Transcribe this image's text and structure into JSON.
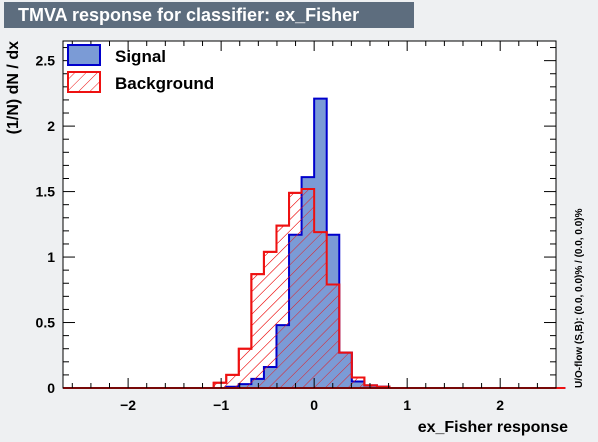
{
  "title": "TMVA response for classifier: ex_Fisher",
  "side_note": "U/O-flow (S,B): (0.0, 0.0)% / (0.0, 0.0)%",
  "colors": {
    "signal_fill": "#7b9bd6",
    "signal_line": "#0000cc",
    "background_line": "#ee1111",
    "plot_bg": "#ffffff",
    "page_bg": "#eef0f2",
    "title_bg": "#5d6d7e"
  },
  "chart_data": {
    "type": "histogram",
    "xlabel": "ex_Fisher response",
    "ylabel": "(1/N) dN / dx",
    "xlim": [
      -2.7,
      2.6
    ],
    "ylim": [
      0,
      2.65
    ],
    "xticks": [
      -2,
      -1,
      0,
      1,
      2
    ],
    "xtick_labels": [
      "−2",
      "−1",
      "0",
      "1",
      "2"
    ],
    "yticks": [
      0,
      0.5,
      1,
      1.5,
      2,
      2.5
    ],
    "ytick_labels": [
      "0",
      "0.5",
      "1",
      "1.5",
      "2",
      "2.5"
    ],
    "grid": false,
    "legend_position": "top-left",
    "bin_edges": [
      -2.7,
      -2.565,
      -2.43,
      -2.295,
      -2.16,
      -2.025,
      -1.89,
      -1.755,
      -1.62,
      -1.485,
      -1.35,
      -1.215,
      -1.08,
      -0.945,
      -0.81,
      -0.675,
      -0.54,
      -0.405,
      -0.27,
      -0.135,
      0.0,
      0.135,
      0.27,
      0.405,
      0.54,
      0.675,
      0.81,
      0.945,
      1.08,
      1.215,
      1.35,
      1.485,
      1.62,
      1.755,
      1.89,
      2.025,
      2.16,
      2.295,
      2.43,
      2.565
    ],
    "series": [
      {
        "name": "Signal",
        "style": "filled",
        "values": [
          0,
          0,
          0,
          0,
          0,
          0,
          0,
          0,
          0,
          0,
          0,
          0,
          0,
          0.01,
          0.03,
          0.07,
          0.16,
          0.48,
          1.17,
          1.61,
          2.21,
          1.17,
          0.27,
          0.05,
          0.02,
          0.01,
          0,
          0,
          0,
          0,
          0,
          0,
          0,
          0,
          0,
          0,
          0,
          0,
          0
        ]
      },
      {
        "name": "Background",
        "style": "hatched",
        "values": [
          0,
          0,
          0,
          0,
          0,
          0,
          0,
          0,
          0,
          0,
          0,
          0,
          0.04,
          0.1,
          0.3,
          0.87,
          1.04,
          1.24,
          1.49,
          1.52,
          1.19,
          0.79,
          0.27,
          0.08,
          0.02,
          0.01,
          0,
          0,
          0,
          0,
          0,
          0,
          0,
          0,
          0,
          0,
          0,
          0,
          0
        ]
      }
    ]
  }
}
